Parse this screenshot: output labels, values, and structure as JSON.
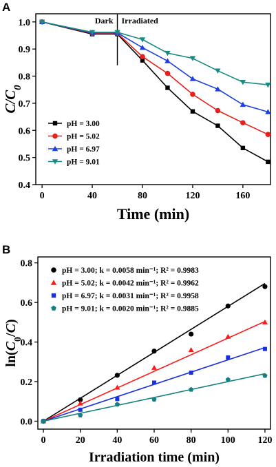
{
  "chart_data": [
    {
      "panel": "A",
      "type": "line",
      "xlabel": "Time (min)",
      "ylabel": "C/C0",
      "xlim": [
        -5,
        182
      ],
      "ylim": [
        0.4,
        1.03
      ],
      "xticks": [
        "0",
        "40",
        "80",
        "120",
        "160"
      ],
      "xtick_values": [
        0,
        40,
        80,
        120,
        160
      ],
      "yticks": [
        "0.4",
        "0.5",
        "0.6",
        "0.7",
        "0.8",
        "0.9",
        "1.0"
      ],
      "ytick_values": [
        0.4,
        0.5,
        0.6,
        0.7,
        0.8,
        0.9,
        1.0
      ],
      "annotations": [
        "Dark",
        "Irradiated"
      ],
      "divider_x": 60,
      "legend_position": "lower-left",
      "x": [
        0,
        40,
        60,
        80,
        100,
        120,
        140,
        160,
        180
      ],
      "series": [
        {
          "name": "pH = 3.00",
          "color": "#000000",
          "marker": "square",
          "values": [
            1.0,
            0.955,
            0.955,
            0.858,
            0.757,
            0.67,
            0.617,
            0.535,
            0.484
          ]
        },
        {
          "name": "pH = 5.02",
          "color": "#e8201c",
          "marker": "circle",
          "values": [
            1.0,
            0.958,
            0.958,
            0.872,
            0.81,
            0.733,
            0.673,
            0.628,
            0.585
          ]
        },
        {
          "name": "pH = 6.97",
          "color": "#1d3fe0",
          "marker": "triangle-up",
          "values": [
            1.0,
            0.96,
            0.96,
            0.905,
            0.856,
            0.79,
            0.752,
            0.695,
            0.668
          ]
        },
        {
          "name": "pH = 9.01",
          "color": "#1a8a84",
          "marker": "triangle-down",
          "values": [
            1.0,
            0.962,
            0.962,
            0.935,
            0.885,
            0.866,
            0.82,
            0.778,
            0.768
          ]
        }
      ]
    },
    {
      "panel": "B",
      "type": "scatter",
      "xlabel": "Irradiation time (min)",
      "ylabel": "ln(C0/C)",
      "xlim": [
        -3,
        123
      ],
      "ylim": [
        -0.04,
        0.83
      ],
      "xticks": [
        "0",
        "20",
        "40",
        "60",
        "80",
        "100",
        "120"
      ],
      "xtick_values": [
        0,
        20,
        40,
        60,
        80,
        100,
        120
      ],
      "yticks": [
        "0.0",
        "0.2",
        "0.4",
        "0.6",
        "0.8"
      ],
      "ytick_values": [
        0,
        0.2,
        0.4,
        0.6,
        0.8
      ],
      "legend_position": "top-left",
      "x": [
        0,
        20,
        40,
        60,
        80,
        100,
        120
      ],
      "series": [
        {
          "name": "pH = 3.00; k = 0.0058 min⁻¹; R² = 0.9983",
          "color": "#000000",
          "marker": "circle",
          "slope": 0.0058,
          "values": [
            0,
            0.108,
            0.232,
            0.354,
            0.44,
            0.582,
            0.68
          ]
        },
        {
          "name": "pH = 5.02; k = 0.0042 min⁻¹; R² = 0.9962",
          "color": "#ff1a1a",
          "marker": "triangle-up",
          "slope": 0.0042,
          "values": [
            0,
            0.09,
            0.17,
            0.27,
            0.36,
            0.427,
            0.5
          ]
        },
        {
          "name": "pH = 6.97; k = 0.0031 min⁻¹; R² = 0.9958",
          "color": "#1a2fe0",
          "marker": "square",
          "slope": 0.0031,
          "values": [
            0,
            0.058,
            0.112,
            0.195,
            0.245,
            0.322,
            0.365
          ]
        },
        {
          "name": "pH = 9.01; k = 0.0020 min⁻¹; R² = 0.9885",
          "color": "#167f7f",
          "marker": "pentagon",
          "slope": 0.002,
          "values": [
            0,
            0.03,
            0.085,
            0.11,
            0.16,
            0.21,
            0.23
          ]
        }
      ]
    }
  ],
  "labels": {
    "panel_a": "A",
    "panel_b": "B"
  }
}
